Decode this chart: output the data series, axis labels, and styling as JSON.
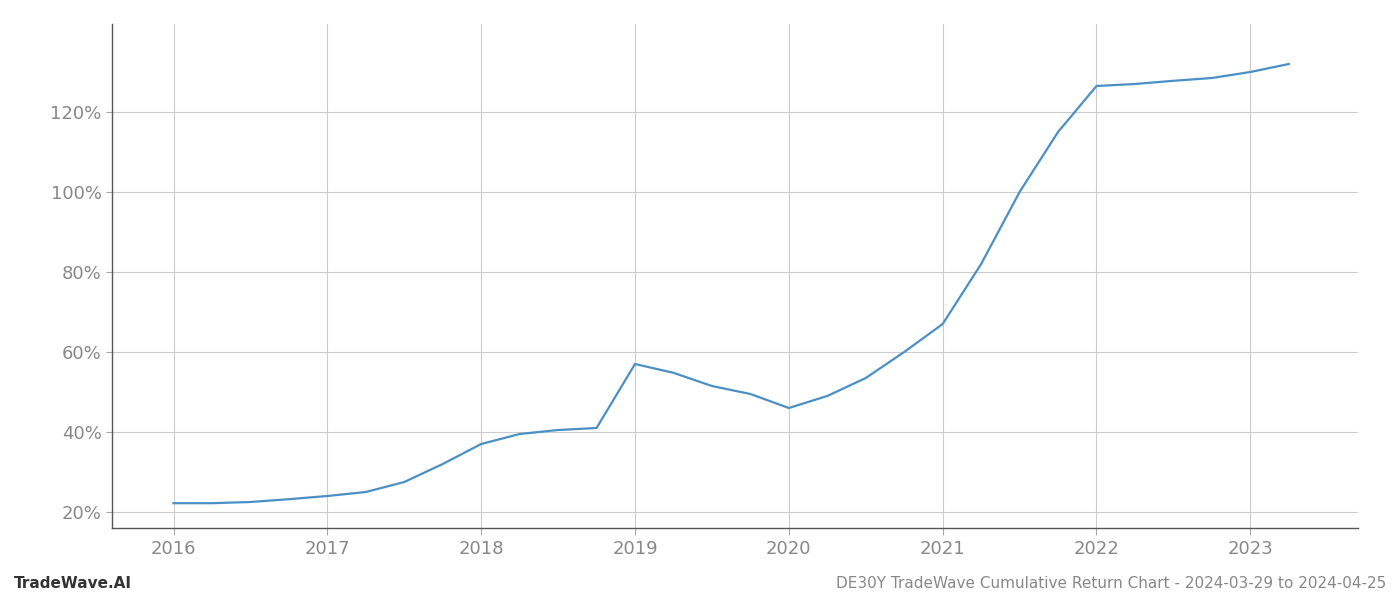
{
  "title": "DE30Y TradeWave Cumulative Return Chart - 2024-03-29 to 2024-04-25",
  "watermark": "TradeWave.AI",
  "line_color": "#4a90c4",
  "background_color": "#ffffff",
  "grid_color": "#cccccc",
  "x_values": [
    2016.0,
    2016.25,
    2016.5,
    2016.75,
    2017.0,
    2017.25,
    2017.5,
    2017.75,
    2018.0,
    2018.25,
    2018.5,
    2018.75,
    2019.0,
    2019.25,
    2019.5,
    2019.75,
    2020.0,
    2020.25,
    2020.5,
    2020.75,
    2021.0,
    2021.25,
    2021.5,
    2021.75,
    2022.0,
    2022.25,
    2022.5,
    2022.75,
    2023.0,
    2023.25
  ],
  "y_values": [
    0.222,
    0.222,
    0.225,
    0.232,
    0.24,
    0.25,
    0.275,
    0.32,
    0.37,
    0.395,
    0.405,
    0.41,
    0.57,
    0.548,
    0.515,
    0.495,
    0.46,
    0.49,
    0.535,
    0.6,
    0.67,
    0.82,
    1.0,
    1.15,
    1.265,
    1.27,
    1.278,
    1.285,
    1.3,
    1.32
  ],
  "xlim": [
    2015.6,
    2023.7
  ],
  "ylim": [
    0.16,
    1.42
  ],
  "yticks": [
    0.2,
    0.4,
    0.6,
    0.8,
    1.0,
    1.2
  ],
  "ytick_labels": [
    "20%",
    "40%",
    "60%",
    "80%",
    "100%",
    "120%"
  ],
  "xticks": [
    2016,
    2017,
    2018,
    2019,
    2020,
    2021,
    2022,
    2023
  ],
  "line_width": 1.6,
  "figsize": [
    14.0,
    6.0
  ],
  "dpi": 100,
  "tick_fontsize": 13,
  "label_fontsize": 11,
  "title_fontsize": 11,
  "spine_color": "#aaaaaa",
  "tick_color": "#aaaaaa",
  "text_color": "#888888",
  "watermark_color": "#333333"
}
